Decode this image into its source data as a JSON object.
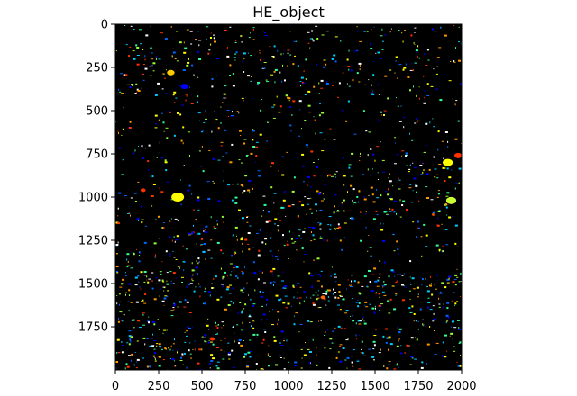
{
  "figure": {
    "title": "HE_object",
    "image_extent": {
      "x": [
        0,
        2000
      ],
      "y": [
        0,
        2000
      ]
    },
    "background_color": "#000000",
    "colormap_colors": [
      "#0000ff",
      "#0066ff",
      "#00ccff",
      "#33ff99",
      "#99ff33",
      "#ffff00",
      "#ff9900",
      "#ff3300",
      "#ffffff"
    ],
    "x_ticks": [
      "0",
      "250",
      "500",
      "750",
      "1000",
      "1250",
      "1500",
      "1750",
      "2000"
    ],
    "y_ticks": [
      "0",
      "250",
      "500",
      "750",
      "1000",
      "1250",
      "1500",
      "1750"
    ]
  }
}
